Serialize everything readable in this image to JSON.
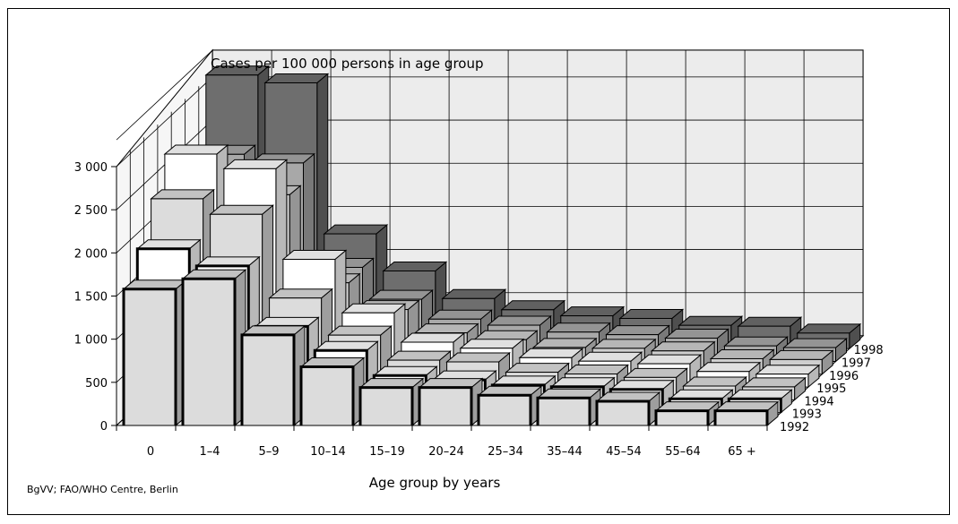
{
  "source_note": "BgVV; FAO/WHO Centre, Berlin",
  "chart_data": {
    "type": "bar",
    "title": "Cases per 100 000 persons in age group",
    "xlabel": "Age group by years",
    "ylabel": "",
    "ylim": [
      0,
      3000
    ],
    "yticks": [
      0,
      500,
      1000,
      1500,
      2000,
      2500,
      3000
    ],
    "ytick_labels": [
      "0",
      "500",
      "1 000",
      "1 500",
      "2 000",
      "2 500",
      "3 000"
    ],
    "categories": [
      "0",
      "1–4",
      "5–9",
      "10–14",
      "15–19",
      "20–24",
      "25–34",
      "35–44",
      "45–54",
      "55–64",
      "65 +"
    ],
    "depth_labels": [
      "1992",
      "1993",
      "1994",
      "1995",
      "1996",
      "1997",
      "1998"
    ],
    "grid": true,
    "series": [
      {
        "name": "1992",
        "fill": "#dcdcdc",
        "bold": true,
        "values": [
          1580,
          1700,
          1050,
          680,
          440,
          440,
          350,
          320,
          280,
          170,
          170
        ]
      },
      {
        "name": "1993",
        "fill": "#ffffff",
        "bold": true,
        "values": [
          1900,
          1700,
          1000,
          720,
          430,
          380,
          320,
          300,
          270,
          160,
          160
        ]
      },
      {
        "name": "1994",
        "fill": "#dcdcdc",
        "bold": false,
        "values": [
          2330,
          2150,
          1180,
          750,
          460,
          440,
          320,
          300,
          260,
          160,
          150
        ]
      },
      {
        "name": "1995",
        "fill": "#ffffff",
        "bold": false,
        "values": [
          2700,
          2530,
          1480,
          860,
          520,
          450,
          340,
          300,
          270,
          180,
          150
        ]
      },
      {
        "name": "1996",
        "fill": "#cfcfcf",
        "bold": false,
        "values": [
          2300,
          2080,
          1060,
          750,
          480,
          400,
          310,
          300,
          270,
          180,
          170
        ]
      },
      {
        "name": "1997",
        "fill": "#a8a8a8",
        "bold": false,
        "values": [
          2400,
          2300,
          1090,
          720,
          490,
          420,
          340,
          310,
          270,
          180,
          160
        ]
      },
      {
        "name": "1998",
        "fill": "#6e6e6e",
        "bold": false,
        "values": [
          3170,
          3080,
          1330,
          900,
          580,
          450,
          380,
          350,
          270,
          260,
          180
        ]
      }
    ]
  }
}
